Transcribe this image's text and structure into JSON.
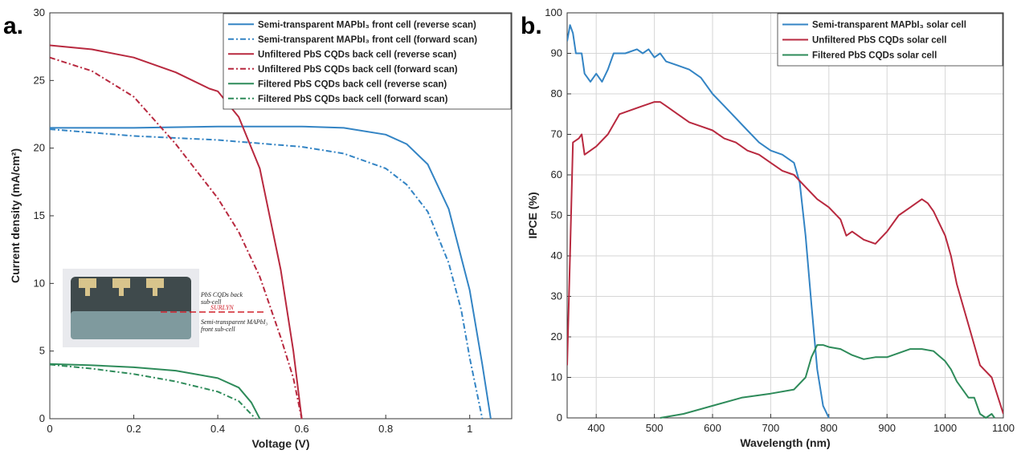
{
  "chart_data": [
    {
      "type": "line",
      "panel_label": "a.",
      "xlabel": "Voltage (V)",
      "ylabel": "Current density (mA/cm²)",
      "xlim": [
        0,
        1.1
      ],
      "xticks": [
        0,
        0.2,
        0.4,
        0.6,
        0.8,
        1
      ],
      "ylim": [
        0,
        30
      ],
      "yticks": [
        0,
        5,
        10,
        15,
        20,
        25,
        30
      ],
      "grid": false,
      "legend": "upper-right",
      "series": [
        {
          "name": "Semi-transparent MAPbI₃ front cell (reverse scan)",
          "color": "#3384c4",
          "linestyle": "solid",
          "x": [
            0,
            0.2,
            0.4,
            0.6,
            0.7,
            0.8,
            0.85,
            0.9,
            0.95,
            1.0,
            1.03,
            1.05
          ],
          "values": [
            21.5,
            21.5,
            21.6,
            21.6,
            21.5,
            21.0,
            20.3,
            18.8,
            15.5,
            9.5,
            4,
            0
          ]
        },
        {
          "name": "Semi-transparent MAPbI₃ front cell (forward scan)",
          "color": "#3384c4",
          "linestyle": "dashdot",
          "x": [
            0,
            0.2,
            0.4,
            0.6,
            0.7,
            0.8,
            0.85,
            0.9,
            0.95,
            0.98,
            1.0,
            1.03
          ],
          "values": [
            21.4,
            20.9,
            20.6,
            20.1,
            19.6,
            18.5,
            17.3,
            15.3,
            11.5,
            8,
            4.5,
            0
          ]
        },
        {
          "name": "Unfiltered PbS CQDs back cell (reverse scan)",
          "color": "#b8293f",
          "linestyle": "solid",
          "x": [
            0,
            0.1,
            0.2,
            0.3,
            0.38,
            0.4,
            0.45,
            0.5,
            0.55,
            0.58,
            0.6
          ],
          "values": [
            27.6,
            27.3,
            26.7,
            25.6,
            24.4,
            24.2,
            22.3,
            18.5,
            11,
            5,
            0
          ]
        },
        {
          "name": "Unfiltered PbS CQDs back cell (forward scan)",
          "color": "#b8293f",
          "linestyle": "dashdot",
          "x": [
            0,
            0.1,
            0.2,
            0.3,
            0.4,
            0.45,
            0.5,
            0.55,
            0.58,
            0.6
          ],
          "values": [
            26.7,
            25.7,
            23.8,
            20.3,
            16.3,
            13.8,
            10.5,
            6,
            3,
            0
          ]
        },
        {
          "name": "Filtered PbS CQDs back cell (reverse scan)",
          "color": "#2e8b5a",
          "linestyle": "solid",
          "x": [
            0,
            0.1,
            0.2,
            0.3,
            0.4,
            0.45,
            0.48,
            0.5
          ],
          "values": [
            4.05,
            3.95,
            3.8,
            3.55,
            3.0,
            2.3,
            1.2,
            0
          ]
        },
        {
          "name": "Filtered PbS CQDs back cell (forward scan)",
          "color": "#2e8b5a",
          "linestyle": "dashdot",
          "x": [
            0,
            0.1,
            0.2,
            0.3,
            0.4,
            0.45,
            0.49
          ],
          "values": [
            4.0,
            3.7,
            3.3,
            2.75,
            2.0,
            1.3,
            0
          ]
        }
      ],
      "inset": {
        "back_label": [
          "PbS CQDs back",
          "sub-cell"
        ],
        "middle_label": "SURLYN",
        "front_label": [
          "Semi-transparent MAPbI₃",
          "front sub-cell"
        ]
      }
    },
    {
      "type": "line",
      "panel_label": "b.",
      "xlabel": "Wavelength (nm)",
      "ylabel": "IPCE (%)",
      "xlim": [
        350,
        1100
      ],
      "xticks": [
        400,
        500,
        600,
        700,
        800,
        900,
        1000,
        1100
      ],
      "ylim": [
        0,
        100
      ],
      "yticks": [
        0,
        10,
        20,
        30,
        40,
        50,
        60,
        70,
        80,
        90,
        100
      ],
      "grid": true,
      "legend": "upper-right",
      "series": [
        {
          "name": "Semi-transparent MAPbI₃ solar cell",
          "color": "#3384c4",
          "linestyle": "solid",
          "x": [
            350,
            355,
            360,
            365,
            375,
            380,
            390,
            400,
            410,
            420,
            430,
            450,
            470,
            480,
            490,
            500,
            510,
            520,
            540,
            560,
            580,
            600,
            620,
            640,
            660,
            680,
            700,
            720,
            740,
            750,
            760,
            770,
            780,
            790,
            800
          ],
          "values": [
            93,
            97,
            95,
            90,
            90,
            85,
            83,
            85,
            83,
            86,
            90,
            90,
            91,
            90,
            91,
            89,
            90,
            88,
            87,
            86,
            84,
            80,
            77,
            74,
            71,
            68,
            66,
            65,
            63,
            58,
            45,
            28,
            12,
            3,
            0
          ]
        },
        {
          "name": "Unfiltered PbS CQDs solar cell",
          "color": "#b8293f",
          "linestyle": "solid",
          "x": [
            350,
            355,
            360,
            370,
            375,
            380,
            400,
            420,
            440,
            460,
            480,
            500,
            510,
            520,
            540,
            560,
            580,
            600,
            620,
            640,
            660,
            680,
            700,
            720,
            740,
            760,
            780,
            800,
            820,
            830,
            840,
            860,
            880,
            900,
            920,
            940,
            960,
            970,
            980,
            1000,
            1010,
            1020,
            1040,
            1060,
            1080,
            1100
          ],
          "values": [
            13,
            40,
            68,
            69,
            70,
            65,
            67,
            70,
            75,
            76,
            77,
            78,
            78,
            77,
            75,
            73,
            72,
            71,
            69,
            68,
            66,
            65,
            63,
            61,
            60,
            57,
            54,
            52,
            49,
            45,
            46,
            44,
            43,
            46,
            50,
            52,
            54,
            53,
            51,
            45,
            40,
            33,
            23,
            13,
            10,
            1
          ]
        },
        {
          "name": "Filtered PbS CQDs solar cell",
          "color": "#2e8b5a",
          "linestyle": "solid",
          "x": [
            510,
            550,
            600,
            650,
            700,
            740,
            760,
            770,
            780,
            790,
            800,
            820,
            840,
            860,
            880,
            900,
            920,
            940,
            960,
            980,
            1000,
            1010,
            1020,
            1040,
            1050,
            1060,
            1070,
            1080,
            1085
          ],
          "values": [
            0,
            1,
            3,
            5,
            6,
            7,
            10,
            15,
            18,
            18,
            17.5,
            17,
            15.5,
            14.5,
            15,
            15,
            16,
            17,
            17,
            16.5,
            14,
            12,
            9,
            5,
            5,
            1,
            0,
            1,
            0
          ]
        }
      ]
    }
  ]
}
